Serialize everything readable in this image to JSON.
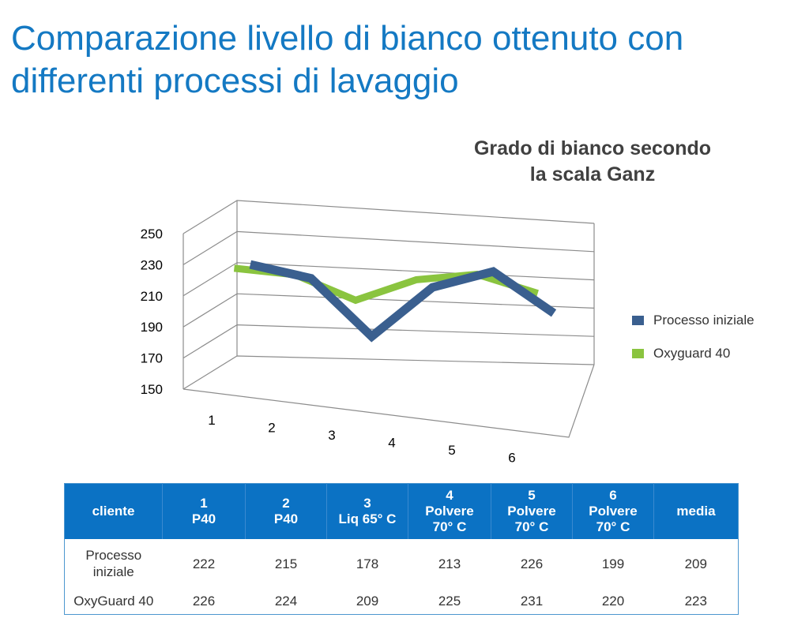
{
  "page": {
    "title_line1": "Comparazione livello di bianco ottenuto con",
    "title_line2": "differenti processi di lavaggio"
  },
  "chart_data": {
    "type": "line",
    "title_line1": "Grado di bianco secondo",
    "title_line2": "la scala Ganz",
    "categories": [
      "1",
      "2",
      "3",
      "4",
      "5",
      "6"
    ],
    "y_ticks": [
      "250",
      "230",
      "210",
      "190",
      "170",
      "150"
    ],
    "ylim": [
      150,
      250
    ],
    "grid": true,
    "legend_position": "right",
    "series": [
      {
        "name": "Processo iniziale",
        "color": "#3a5f8f",
        "values": [
          222,
          215,
          178,
          213,
          226,
          199
        ]
      },
      {
        "name": "Oxyguard 40",
        "color": "#8ac43f",
        "values": [
          226,
          224,
          209,
          225,
          231,
          220
        ]
      }
    ]
  },
  "table": {
    "headers": [
      [
        "cliente"
      ],
      [
        "1",
        "P40"
      ],
      [
        "2",
        "P40"
      ],
      [
        "3",
        "Liq 65° C"
      ],
      [
        "4",
        "Polvere",
        "70° C"
      ],
      [
        "5",
        "Polvere",
        "70° C"
      ],
      [
        "6",
        "Polvere",
        "70° C"
      ],
      [
        "media"
      ]
    ],
    "rows": [
      {
        "label": [
          "Processo",
          "iniziale"
        ],
        "values": [
          "222",
          "215",
          "178",
          "213",
          "226",
          "199",
          "209"
        ]
      },
      {
        "label": [
          "OxyGuard 40"
        ],
        "values": [
          "226",
          "224",
          "209",
          "225",
          "231",
          "220",
          "223"
        ]
      }
    ]
  }
}
